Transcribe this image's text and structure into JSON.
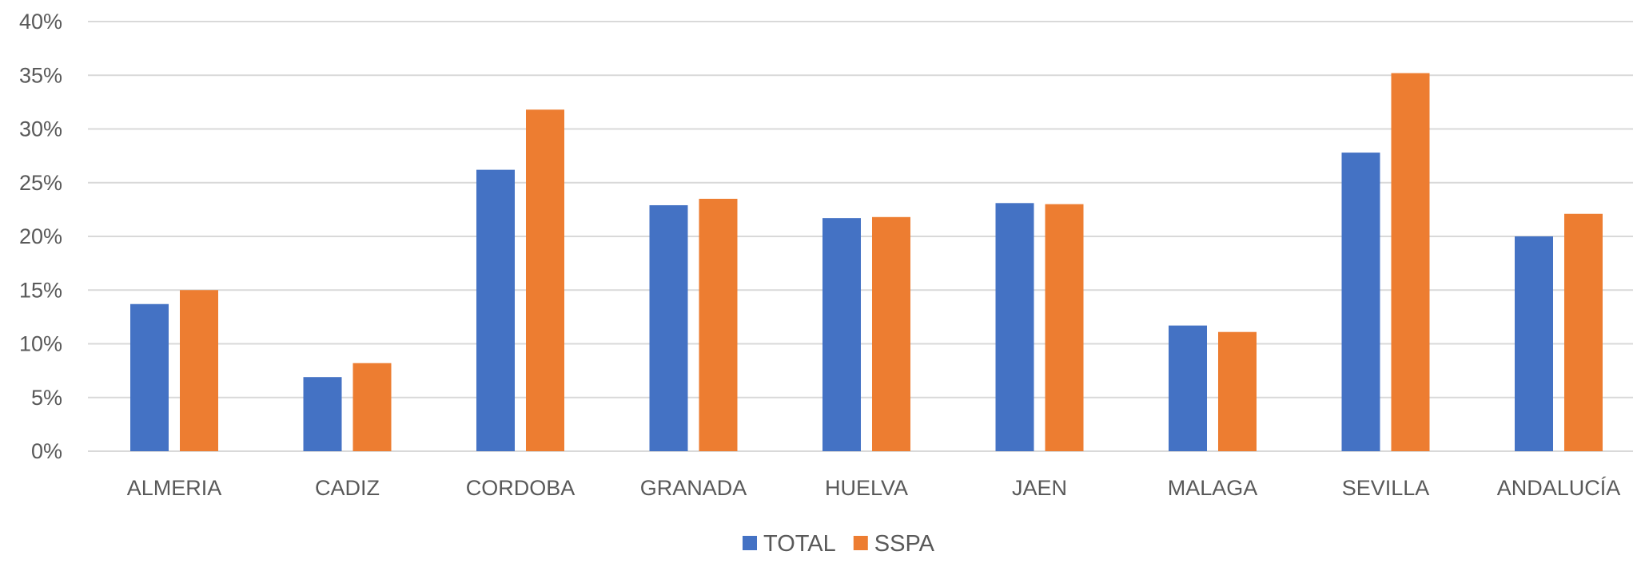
{
  "chart_data": {
    "type": "bar",
    "title": "",
    "xlabel": "",
    "ylabel": "",
    "categories": [
      "ALMERIA",
      "CADIZ",
      "CORDOBA",
      "GRANADA",
      "HUELVA",
      "JAEN",
      "MALAGA",
      "SEVILLA",
      "ANDALUCÍA"
    ],
    "series": [
      {
        "name": "TOTAL",
        "color": "#4472c4",
        "values": [
          0.137,
          0.069,
          0.262,
          0.229,
          0.217,
          0.231,
          0.117,
          0.278,
          0.2
        ]
      },
      {
        "name": "SSPA",
        "color": "#ed7d31",
        "values": [
          0.15,
          0.082,
          0.318,
          0.235,
          0.218,
          0.23,
          0.111,
          0.352,
          0.221
        ]
      }
    ],
    "ylim": [
      0,
      0.4
    ],
    "yticks": [
      "0%",
      "5%",
      "10%",
      "15%",
      "20%",
      "25%",
      "30%",
      "35%",
      "40%"
    ],
    "grid": true,
    "legend": "bottom-center"
  }
}
